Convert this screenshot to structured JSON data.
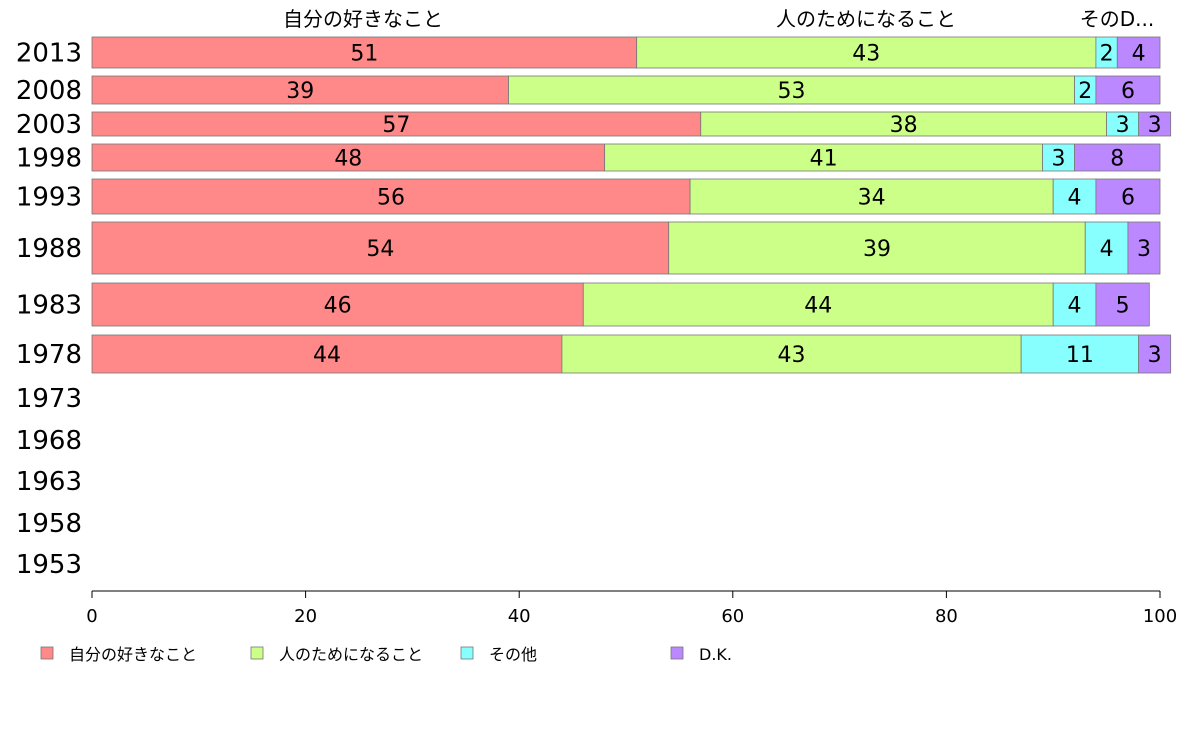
{
  "chart_data": {
    "type": "bar",
    "orientation": "horizontal",
    "stacked": true,
    "xlim": [
      0,
      100
    ],
    "x_ticks": [
      "0",
      "20",
      "40",
      "60",
      "80",
      "100"
    ],
    "categories": [
      "2013",
      "2008",
      "2003",
      "1998",
      "1993",
      "1988",
      "1983",
      "1978",
      "1973",
      "1968",
      "1963",
      "1958",
      "1953"
    ],
    "series": [
      {
        "name": "自分の好きなこと",
        "color": "#ff8888",
        "values": [
          51,
          39,
          57,
          48,
          56,
          54,
          46,
          44,
          null,
          null,
          null,
          null,
          null
        ]
      },
      {
        "name": "人のためになること",
        "color": "#ccff88",
        "values": [
          43,
          53,
          38,
          41,
          34,
          39,
          44,
          43,
          null,
          null,
          null,
          null,
          null
        ]
      },
      {
        "name": "その他",
        "color": "#88ffff",
        "values": [
          2,
          2,
          3,
          3,
          4,
          4,
          4,
          11,
          null,
          null,
          null,
          null,
          null
        ]
      },
      {
        "name": "D.K.",
        "color": "#bb88ff",
        "values": [
          4,
          6,
          3,
          8,
          6,
          3,
          5,
          3,
          null,
          null,
          null,
          null,
          null
        ]
      }
    ],
    "header_labels": [
      "自分の好きなこと",
      "人のためになること",
      "そのD..."
    ],
    "legend_position": "bottom",
    "grid": false
  }
}
